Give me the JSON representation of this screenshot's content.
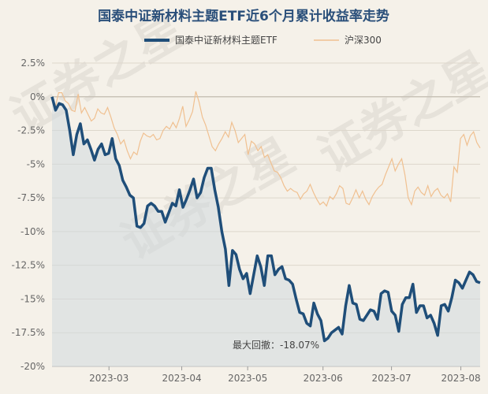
{
  "chart_data": {
    "type": "line",
    "title": "国泰中证新材料主题ETF近6个月累计收益率走势",
    "watermark": "证券之星",
    "series": [
      {
        "name": "国泰中证新材料主题ETF",
        "color": "#1f4e79",
        "values": [
          0,
          -1.0,
          -0.5,
          -0.6,
          -1.0,
          -2.5,
          -4.3,
          -2.8,
          -2.0,
          -3.5,
          -3.2,
          -3.9,
          -4.7,
          -3.9,
          -3.5,
          -4.3,
          -4.2,
          -3.1,
          -4.6,
          -5.1,
          -6.2,
          -6.7,
          -7.3,
          -7.5,
          -9.6,
          -9.7,
          -9.4,
          -8.1,
          -7.9,
          -8.1,
          -8.5,
          -8.5,
          -9.3,
          -8.6,
          -7.9,
          -8.1,
          -6.9,
          -8.2,
          -7.6,
          -6.9,
          -6.1,
          -7.5,
          -7.1,
          -6.0,
          -5.3,
          -5.3,
          -6.9,
          -8.2,
          -10.0,
          -11.3,
          -14.0,
          -11.4,
          -11.7,
          -12.8,
          -13.5,
          -13.1,
          -14.6,
          -13.2,
          -11.8,
          -12.6,
          -14.0,
          -11.8,
          -11.8,
          -13.2,
          -12.8,
          -12.6,
          -13.5,
          -13.6,
          -13.9,
          -15.0,
          -16.0,
          -16.1,
          -16.8,
          -17.0,
          -15.3,
          -16.1,
          -16.6,
          -18.1,
          -17.9,
          -17.5,
          -17.3,
          -17.1,
          -17.6,
          -15.5,
          -14.0,
          -15.3,
          -15.4,
          -16.5,
          -16.6,
          -16.2,
          -15.8,
          -15.9,
          -16.5,
          -14.6,
          -14.4,
          -14.5,
          -15.9,
          -16.2,
          -17.4,
          -15.4,
          -14.9,
          -14.9,
          -13.9,
          -16.0,
          -15.5,
          -15.5,
          -16.4,
          -16.2,
          -16.8,
          -17.7,
          -15.5,
          -15.4,
          -15.9,
          -14.9,
          -13.6,
          -13.8,
          -14.2,
          -13.6,
          -13.0,
          -13.2,
          -13.7,
          -13.8
        ]
      },
      {
        "name": "沪深300",
        "color": "#f0c090",
        "values": [
          0,
          -0.8,
          0.3,
          0.3,
          -0.3,
          -0.5,
          -1.0,
          -1.1,
          0.2,
          -1.2,
          -0.8,
          -1.3,
          -1.8,
          -1.6,
          -0.9,
          -1.2,
          -1.3,
          -0.8,
          -1.5,
          -2.3,
          -2.8,
          -3.5,
          -3.2,
          -4.0,
          -4.6,
          -4.1,
          -4.3,
          -3.3,
          -2.7,
          -2.9,
          -3.0,
          -2.8,
          -3.2,
          -3.1,
          -2.5,
          -2.2,
          -2.4,
          -1.9,
          -2.3,
          -1.6,
          -0.7,
          -2.2,
          -1.7,
          -1.1,
          0.4,
          -0.4,
          -1.5,
          -2.1,
          -2.9,
          -3.7,
          -4.0,
          -3.5,
          -3.1,
          -2.6,
          -3.0,
          -1.9,
          -2.5,
          -3.4,
          -3.1,
          -2.8,
          -4.3,
          -3.3,
          -3.5,
          -4.0,
          -3.7,
          -4.5,
          -4.3,
          -4.9,
          -5.5,
          -5.6,
          -6.0,
          -6.6,
          -7.0,
          -6.8,
          -7.0,
          -7.1,
          -7.6,
          -7.2,
          -7.0,
          -6.5,
          -7.1,
          -7.6,
          -8.0,
          -7.8,
          -8.1,
          -7.4,
          -7.6,
          -7.2,
          -6.6,
          -6.8,
          -7.9,
          -8.0,
          -7.5,
          -6.9,
          -7.5,
          -7.0,
          -7.6,
          -8.0,
          -7.4,
          -7.0,
          -6.7,
          -6.5,
          -5.8,
          -5.2,
          -4.6,
          -5.5,
          -5.0,
          -4.6,
          -5.8,
          -7.5,
          -8.0,
          -7.0,
          -6.7,
          -7.1,
          -7.3,
          -6.6,
          -7.4,
          -7.0,
          -6.8,
          -7.3,
          -7.5,
          -7.2,
          -7.8,
          -5.2,
          -5.6,
          -3.1,
          -2.8,
          -3.6,
          -2.9,
          -2.6,
          -3.4,
          -3.8
        ]
      }
    ],
    "x_tick_labels": [
      "2023-03",
      "2023-04",
      "2023-05",
      "2023-06",
      "2023-07",
      "2023-08"
    ],
    "x_tick_fraction": [
      0.133,
      0.303,
      0.457,
      0.633,
      0.793,
      0.955
    ],
    "y_ticks": [
      2.5,
      0,
      -2.5,
      -5,
      -7.5,
      -10,
      -12.5,
      -15,
      -17.5,
      -20
    ],
    "y_tick_labels": [
      "2.5%",
      "0%",
      "-2.5%",
      "-5%",
      "-7.5%",
      "-10%",
      "-12.5%",
      "-15%",
      "-17.5%",
      "-20%"
    ],
    "ylim": [
      -20,
      3.2
    ],
    "grid": true,
    "legend_position": "top-center",
    "annotation": {
      "text": "最大回撤：-18.07%",
      "value": -18.07
    }
  }
}
